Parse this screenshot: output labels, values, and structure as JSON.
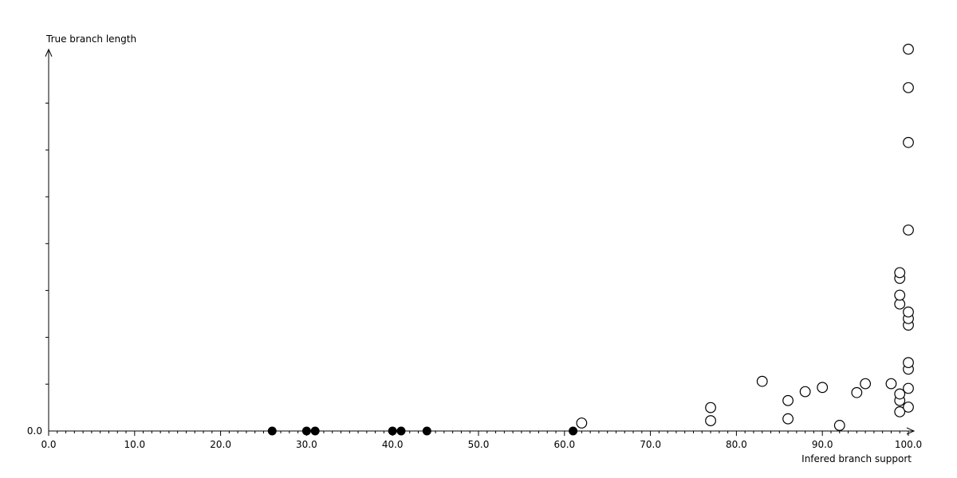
{
  "colors": {
    "foreground": "#000000",
    "background": "#ffffff"
  },
  "chart_data": {
    "type": "scatter",
    "title": "",
    "xlabel": "Infered branch support",
    "ylabel": "True branch length",
    "grid": "off",
    "legend": "none",
    "x_axis": {
      "min": 0,
      "max": 100,
      "major_tick_interval": 10,
      "minor_tick_interval": 1,
      "ticks": [
        0,
        10,
        20,
        30,
        40,
        50,
        60,
        70,
        80,
        90,
        100
      ],
      "tick_labels": [
        "0.0",
        "10.0",
        "20.0",
        "30.0",
        "40.0",
        "50.0",
        "60.0",
        "70.0",
        "80.0",
        "90.0",
        "100.0"
      ],
      "arrow": true
    },
    "y_axis": {
      "min": 0,
      "origin_label": "0.0",
      "unlabeled_major_ticks": 7,
      "unit": "axis tick units (ticks above 0.0 are unlabeled)",
      "arrow": true
    },
    "series": [
      {
        "name": "filled",
        "marker": "filled-circle",
        "points": [
          {
            "x": 26,
            "y": 0
          },
          {
            "x": 30,
            "y": 0
          },
          {
            "x": 31,
            "y": 0
          },
          {
            "x": 40,
            "y": 0
          },
          {
            "x": 41,
            "y": 0
          },
          {
            "x": 44,
            "y": 0
          },
          {
            "x": 61,
            "y": 0
          }
        ]
      },
      {
        "name": "open",
        "marker": "open-circle",
        "points": [
          {
            "x": 62,
            "y": 0.17
          },
          {
            "x": 77,
            "y": 0.22
          },
          {
            "x": 77,
            "y": 0.5
          },
          {
            "x": 83,
            "y": 1.06
          },
          {
            "x": 86,
            "y": 0.26
          },
          {
            "x": 86,
            "y": 0.65
          },
          {
            "x": 88,
            "y": 0.84
          },
          {
            "x": 90,
            "y": 0.93
          },
          {
            "x": 92,
            "y": 0.12
          },
          {
            "x": 94,
            "y": 0.82
          },
          {
            "x": 95,
            "y": 1.01
          },
          {
            "x": 98,
            "y": 1.01
          },
          {
            "x": 99,
            "y": 0.41
          },
          {
            "x": 99,
            "y": 0.65
          },
          {
            "x": 99,
            "y": 0.79
          },
          {
            "x": 99,
            "y": 2.71
          },
          {
            "x": 99,
            "y": 2.9
          },
          {
            "x": 99,
            "y": 3.26
          },
          {
            "x": 99,
            "y": 3.38
          },
          {
            "x": 100,
            "y": 0.51
          },
          {
            "x": 100,
            "y": 0.91
          },
          {
            "x": 100,
            "y": 1.32
          },
          {
            "x": 100,
            "y": 1.46
          },
          {
            "x": 100,
            "y": 2.26
          },
          {
            "x": 100,
            "y": 2.4
          },
          {
            "x": 100,
            "y": 2.54
          },
          {
            "x": 100,
            "y": 4.29
          },
          {
            "x": 100,
            "y": 6.16
          },
          {
            "x": 100,
            "y": 7.33
          },
          {
            "x": 100,
            "y": 8.15
          }
        ]
      }
    ]
  }
}
